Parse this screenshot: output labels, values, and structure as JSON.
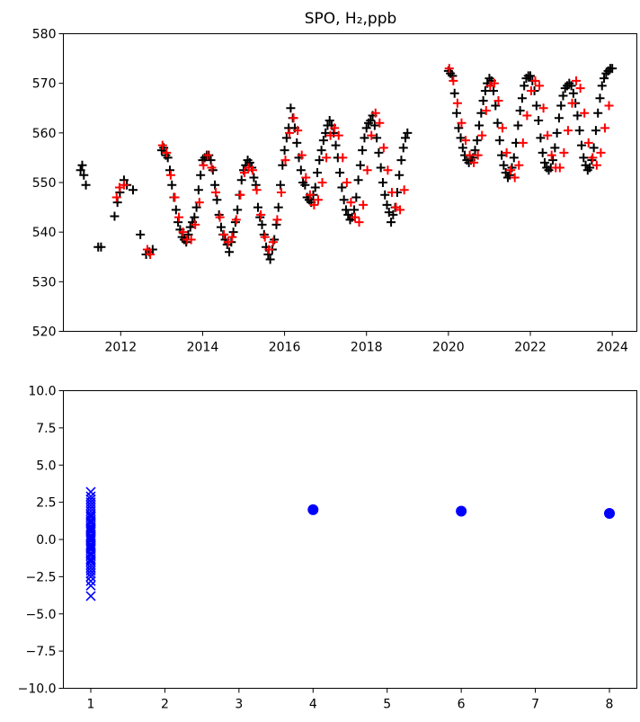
{
  "chart_data": [
    {
      "type": "scatter",
      "title": "SPO, H₂,ppb",
      "xlabel": "",
      "ylabel": "",
      "xlim": [
        2010.6,
        2024.6
      ],
      "ylim": [
        520,
        580
      ],
      "xticks": [
        2012,
        2014,
        2016,
        2018,
        2020,
        2022,
        2024
      ],
      "yticks": [
        520,
        530,
        540,
        550,
        560,
        570,
        580
      ],
      "grid": false,
      "series": [
        {
          "marker": "+",
          "color": "#000000",
          "x": [
            2011.02,
            2011.06,
            2011.1,
            2011.15,
            2011.45,
            2011.52,
            2011.85,
            2011.92,
            2011.98,
            2012.08,
            2012.15,
            2012.3,
            2012.48,
            2012.62,
            2012.7,
            2012.78,
            2013.0,
            2013.05,
            2013.1,
            2013.15,
            2013.2,
            2013.25,
            2013.3,
            2013.35,
            2013.4,
            2013.45,
            2013.5,
            2013.55,
            2013.6,
            2013.65,
            2013.7,
            2013.75,
            2013.8,
            2013.85,
            2013.9,
            2013.95,
            2014.0,
            2014.05,
            2014.1,
            2014.15,
            2014.2,
            2014.25,
            2014.3,
            2014.35,
            2014.4,
            2014.45,
            2014.5,
            2014.55,
            2014.6,
            2014.65,
            2014.7,
            2014.75,
            2014.8,
            2014.85,
            2014.9,
            2014.95,
            2015.0,
            2015.05,
            2015.1,
            2015.15,
            2015.2,
            2015.25,
            2015.3,
            2015.35,
            2015.4,
            2015.45,
            2015.5,
            2015.55,
            2015.6,
            2015.65,
            2015.7,
            2015.75,
            2015.8,
            2015.85,
            2015.9,
            2015.95,
            2016.0,
            2016.05,
            2016.1,
            2016.15,
            2016.2,
            2016.25,
            2016.3,
            2016.35,
            2016.4,
            2016.45,
            2016.5,
            2016.55,
            2016.6,
            2016.65,
            2016.7,
            2016.75,
            2016.8,
            2016.85,
            2016.9,
            2016.95,
            2017.0,
            2017.05,
            2017.1,
            2017.15,
            2017.2,
            2017.25,
            2017.3,
            2017.35,
            2017.4,
            2017.45,
            2017.5,
            2017.55,
            2017.6,
            2017.65,
            2017.7,
            2017.75,
            2017.8,
            2017.85,
            2017.9,
            2017.95,
            2018.0,
            2018.05,
            2018.1,
            2018.15,
            2018.2,
            2018.25,
            2018.3,
            2018.35,
            2018.4,
            2018.45,
            2018.5,
            2018.55,
            2018.6,
            2018.65,
            2018.7,
            2018.75,
            2018.8,
            2018.85,
            2018.9,
            2018.95,
            2019.0,
            2020.0,
            2020.05,
            2020.1,
            2020.15,
            2020.2,
            2020.25,
            2020.3,
            2020.35,
            2020.4,
            2020.45,
            2020.5,
            2020.55,
            2020.6,
            2020.65,
            2020.7,
            2020.75,
            2020.8,
            2020.85,
            2020.9,
            2020.95,
            2021.0,
            2021.05,
            2021.1,
            2021.15,
            2021.2,
            2021.25,
            2021.3,
            2021.35,
            2021.4,
            2021.45,
            2021.5,
            2021.55,
            2021.6,
            2021.65,
            2021.7,
            2021.75,
            2021.8,
            2021.85,
            2021.9,
            2021.95,
            2022.0,
            2022.05,
            2022.1,
            2022.15,
            2022.2,
            2022.25,
            2022.3,
            2022.35,
            2022.4,
            2022.45,
            2022.5,
            2022.55,
            2022.6,
            2022.65,
            2022.7,
            2022.75,
            2022.8,
            2022.85,
            2022.9,
            2022.95,
            2023.0,
            2023.05,
            2023.1,
            2023.15,
            2023.2,
            2023.25,
            2023.3,
            2023.35,
            2023.4,
            2023.45,
            2023.5,
            2023.55,
            2023.6,
            2023.65,
            2023.7,
            2023.75,
            2023.8,
            2023.85,
            2023.9,
            2023.95,
            2024.0
          ],
          "y": [
            552.5,
            553.5,
            551.5,
            549.5,
            537.0,
            537.0,
            543.2,
            546.0,
            548.0,
            550.5,
            549.5,
            548.5,
            539.5,
            535.5,
            536.0,
            536.5,
            556.5,
            557.0,
            555.5,
            555.0,
            552.5,
            549.5,
            547.0,
            544.5,
            542.0,
            540.5,
            539.0,
            538.5,
            538.0,
            539.5,
            541.0,
            542.0,
            543.0,
            545.0,
            548.5,
            551.5,
            554.5,
            555.0,
            555.5,
            555.5,
            554.5,
            552.5,
            549.5,
            546.5,
            543.5,
            541.0,
            539.5,
            538.5,
            537.5,
            536.0,
            538.0,
            540.0,
            542.0,
            544.5,
            547.5,
            550.5,
            552.5,
            553.5,
            554.5,
            554.0,
            553.0,
            551.0,
            549.5,
            545.0,
            543.0,
            541.5,
            539.5,
            537.0,
            535.5,
            534.5,
            536.5,
            538.5,
            541.5,
            545.0,
            549.5,
            553.5,
            556.5,
            559.0,
            561.0,
            565.0,
            563.0,
            561.0,
            558.0,
            555.0,
            552.5,
            550.0,
            549.5,
            547.0,
            546.5,
            546.0,
            547.5,
            549.0,
            552.0,
            554.5,
            556.5,
            558.5,
            560.0,
            561.5,
            562.5,
            561.5,
            560.0,
            557.5,
            555.0,
            552.0,
            549.0,
            546.5,
            544.5,
            543.5,
            542.5,
            543.0,
            544.5,
            547.0,
            550.5,
            553.5,
            556.5,
            559.0,
            561.0,
            562.0,
            562.5,
            563.5,
            561.5,
            559.0,
            556.0,
            553.0,
            550.0,
            547.5,
            545.5,
            544.0,
            542.0,
            543.5,
            545.0,
            548.0,
            551.5,
            554.5,
            557.0,
            559.0,
            560.0,
            572.5,
            572.0,
            571.5,
            568.0,
            564.0,
            561.0,
            559.0,
            557.0,
            555.5,
            554.5,
            554.0,
            554.5,
            555.0,
            556.5,
            558.5,
            561.5,
            564.0,
            566.5,
            568.5,
            570.0,
            571.0,
            570.5,
            568.5,
            565.5,
            562.0,
            558.5,
            555.5,
            553.5,
            552.0,
            551.0,
            551.5,
            553.0,
            555.0,
            558.0,
            561.5,
            564.5,
            567.0,
            569.5,
            571.0,
            571.5,
            571.5,
            570.5,
            568.5,
            565.5,
            562.5,
            559.0,
            556.0,
            554.0,
            553.0,
            552.5,
            553.0,
            554.5,
            557.0,
            560.0,
            563.0,
            565.5,
            567.5,
            569.0,
            569.5,
            570.0,
            569.5,
            568.0,
            566.0,
            563.5,
            560.5,
            557.5,
            555.0,
            553.5,
            552.5,
            553.0,
            554.5,
            557.0,
            560.5,
            564.0,
            567.0,
            569.5,
            571.0,
            572.0,
            572.5,
            573.0,
            573.0
          ]
        },
        {
          "marker": "+",
          "color": "#ff0000",
          "x": [
            2011.9,
            2011.97,
            2012.08,
            2012.65,
            2012.72,
            2013.02,
            2013.12,
            2013.22,
            2013.32,
            2013.42,
            2013.52,
            2013.62,
            2013.72,
            2013.82,
            2013.92,
            2014.02,
            2014.12,
            2014.22,
            2014.32,
            2014.42,
            2014.52,
            2014.62,
            2014.72,
            2014.82,
            2014.92,
            2015.02,
            2015.12,
            2015.22,
            2015.32,
            2015.42,
            2015.52,
            2015.62,
            2015.72,
            2015.82,
            2015.92,
            2016.02,
            2016.12,
            2016.22,
            2016.32,
            2016.42,
            2016.52,
            2016.62,
            2016.72,
            2016.82,
            2016.92,
            2017.02,
            2017.12,
            2017.22,
            2017.32,
            2017.42,
            2017.52,
            2017.62,
            2017.72,
            2017.82,
            2017.92,
            2018.02,
            2018.12,
            2018.22,
            2018.32,
            2018.42,
            2018.52,
            2018.62,
            2018.72,
            2018.82,
            2018.92,
            2020.02,
            2020.12,
            2020.22,
            2020.32,
            2020.42,
            2020.52,
            2020.62,
            2020.72,
            2020.82,
            2020.92,
            2021.02,
            2021.12,
            2021.22,
            2021.32,
            2021.42,
            2021.52,
            2021.62,
            2021.72,
            2021.82,
            2021.92,
            2022.02,
            2022.12,
            2022.22,
            2022.32,
            2022.42,
            2022.52,
            2022.62,
            2022.72,
            2022.82,
            2022.92,
            2023.02,
            2023.12,
            2023.22,
            2023.32,
            2023.42,
            2023.52,
            2023.62,
            2023.72,
            2023.82,
            2023.92
          ],
          "y": [
            547.0,
            549.0,
            549.5,
            536.5,
            535.5,
            557.5,
            556.0,
            551.5,
            547.0,
            543.0,
            540.0,
            538.5,
            538.5,
            541.5,
            546.0,
            553.5,
            555.5,
            553.0,
            548.0,
            543.0,
            539.5,
            538.0,
            539.0,
            542.5,
            547.5,
            552.0,
            553.0,
            552.5,
            548.5,
            543.5,
            539.0,
            536.5,
            538.0,
            542.5,
            548.0,
            554.5,
            560.0,
            563.0,
            560.5,
            555.5,
            551.0,
            547.5,
            545.5,
            546.5,
            550.0,
            555.0,
            559.5,
            561.0,
            559.5,
            555.0,
            550.0,
            546.0,
            543.0,
            542.0,
            545.5,
            552.5,
            559.5,
            564.0,
            562.0,
            557.0,
            552.5,
            548.0,
            545.0,
            544.5,
            548.5,
            573.0,
            570.5,
            566.0,
            562.0,
            558.5,
            555.5,
            554.0,
            555.5,
            559.5,
            564.5,
            569.5,
            570.0,
            566.5,
            561.0,
            556.0,
            552.5,
            551.0,
            553.5,
            558.0,
            563.5,
            568.5,
            570.5,
            569.5,
            565.0,
            559.5,
            555.5,
            553.0,
            553.0,
            556.0,
            560.5,
            566.0,
            570.5,
            569.0,
            564.0,
            558.0,
            555.0,
            553.5,
            556.0,
            561.0,
            565.5
          ]
        }
      ]
    },
    {
      "type": "scatter",
      "title": "",
      "xlabel": "",
      "ylabel": "",
      "xlim": [
        0.63,
        8.37
      ],
      "ylim": [
        -10,
        10
      ],
      "xticks": [
        1,
        2,
        3,
        4,
        5,
        6,
        7,
        8
      ],
      "yticks": [
        -10.0,
        -7.5,
        -5.0,
        -2.5,
        0.0,
        2.5,
        5.0,
        7.5,
        10.0
      ],
      "ytick_labels": [
        "−10.0",
        "−7.5",
        "−5.0",
        "−2.5",
        "0.0",
        "2.5",
        "5.0",
        "7.5",
        "10.0"
      ],
      "grid": false,
      "series": [
        {
          "marker": "x",
          "color": "#0000ff",
          "x": [
            1,
            1,
            1,
            1,
            1,
            1,
            1,
            1,
            1,
            1,
            1,
            1,
            1,
            1,
            1,
            1,
            1,
            1,
            1,
            1,
            1,
            1,
            1,
            1,
            1,
            1,
            1,
            1,
            1,
            1,
            1,
            1,
            1,
            1,
            1,
            1,
            1,
            1,
            1,
            1,
            1,
            1
          ],
          "y": [
            3.2,
            2.9,
            2.7,
            2.5,
            2.3,
            2.1,
            1.9,
            1.7,
            1.5,
            1.3,
            1.1,
            0.9,
            0.7,
            0.5,
            0.3,
            0.1,
            -0.1,
            -0.3,
            -0.5,
            -0.7,
            -0.9,
            -1.1,
            -1.3,
            -1.5,
            -1.7,
            -1.9,
            -2.1,
            -2.3,
            -2.5,
            -2.8,
            -3.1,
            -3.8,
            0.2,
            0.6,
            -0.4,
            1.2,
            -1.0,
            0.0,
            0.8,
            -0.6,
            1.6,
            -1.4
          ]
        },
        {
          "marker": "o",
          "color": "#0000ff",
          "x": [
            4,
            6,
            8
          ],
          "y": [
            2.0,
            1.9,
            1.75
          ]
        }
      ]
    }
  ]
}
